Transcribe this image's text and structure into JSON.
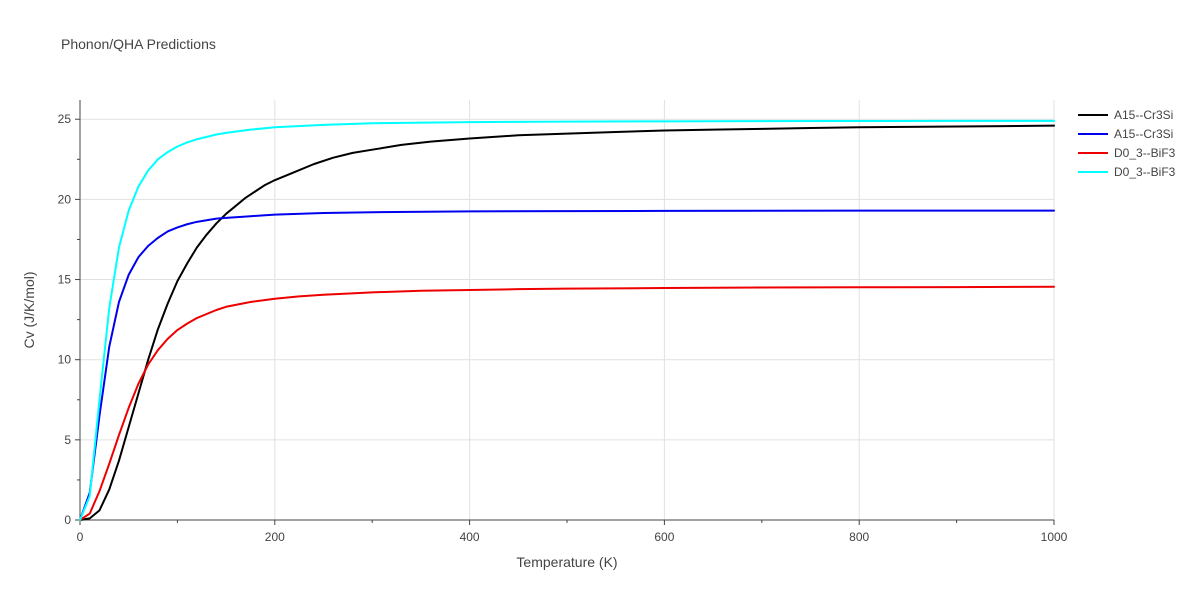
{
  "chart_data": {
    "type": "line",
    "title": "Phonon/QHA Predictions",
    "xlabel": "Temperature (K)",
    "ylabel": "Cv (J/K/mol)",
    "xlim": [
      0,
      1000
    ],
    "ylim": [
      0,
      26.2
    ],
    "xticks": [
      0,
      200,
      400,
      600,
      800,
      1000
    ],
    "xtick_labels": [
      "0",
      "200",
      "400",
      "600",
      "800",
      "1000"
    ],
    "yticks": [
      0,
      5,
      10,
      15,
      20,
      25
    ],
    "ytick_labels": [
      "0",
      "5",
      "10",
      "15",
      "20",
      "25"
    ],
    "grid": true,
    "legend_position": "top-right",
    "series": [
      {
        "name": "A15--Cr3Si",
        "color": "#000000",
        "x": [
          0,
          10,
          20,
          30,
          40,
          50,
          60,
          70,
          80,
          90,
          100,
          110,
          120,
          130,
          140,
          150,
          160,
          170,
          180,
          190,
          200,
          220,
          240,
          260,
          280,
          300,
          330,
          360,
          400,
          450,
          500,
          550,
          600,
          650,
          700,
          750,
          800,
          850,
          900,
          950,
          1000
        ],
        "y": [
          0,
          0.1,
          0.6,
          1.9,
          3.7,
          5.8,
          7.9,
          10.0,
          11.9,
          13.5,
          14.9,
          16.0,
          17.0,
          17.8,
          18.5,
          19.1,
          19.6,
          20.1,
          20.5,
          20.9,
          21.2,
          21.7,
          22.2,
          22.6,
          22.9,
          23.1,
          23.4,
          23.6,
          23.8,
          24.0,
          24.1,
          24.2,
          24.3,
          24.35,
          24.4,
          24.45,
          24.5,
          24.52,
          24.55,
          24.57,
          24.6
        ]
      },
      {
        "name": "A15--Cr3Si",
        "color": "#0000ee",
        "x": [
          0,
          10,
          20,
          30,
          40,
          50,
          60,
          70,
          80,
          90,
          100,
          110,
          120,
          130,
          140,
          150,
          175,
          200,
          250,
          300,
          400,
          500,
          600,
          700,
          800,
          900,
          1000
        ],
        "y": [
          0,
          1.7,
          6.5,
          10.8,
          13.6,
          15.3,
          16.4,
          17.1,
          17.6,
          18.0,
          18.25,
          18.45,
          18.6,
          18.7,
          18.8,
          18.85,
          18.95,
          19.05,
          19.15,
          19.2,
          19.25,
          19.27,
          19.28,
          19.29,
          19.3,
          19.3,
          19.3
        ]
      },
      {
        "name": "D0_3--BiF3",
        "color": "#ee0000",
        "x": [
          0,
          10,
          20,
          30,
          40,
          50,
          60,
          70,
          80,
          90,
          100,
          110,
          120,
          130,
          140,
          150,
          175,
          200,
          225,
          250,
          300,
          350,
          400,
          450,
          500,
          600,
          700,
          800,
          900,
          1000
        ],
        "y": [
          0,
          0.4,
          1.8,
          3.5,
          5.3,
          7.0,
          8.5,
          9.7,
          10.6,
          11.3,
          11.85,
          12.25,
          12.6,
          12.85,
          13.1,
          13.3,
          13.6,
          13.8,
          13.95,
          14.05,
          14.2,
          14.3,
          14.35,
          14.4,
          14.43,
          14.47,
          14.5,
          14.52,
          14.53,
          14.55
        ]
      },
      {
        "name": "D0_3--BiF3",
        "color": "#00ffff",
        "x": [
          0,
          10,
          20,
          30,
          40,
          50,
          60,
          70,
          80,
          90,
          100,
          110,
          120,
          130,
          140,
          150,
          175,
          200,
          250,
          300,
          400,
          500,
          600,
          700,
          800,
          900,
          1000
        ],
        "y": [
          0,
          1.5,
          7.5,
          13.2,
          17.0,
          19.3,
          20.8,
          21.8,
          22.5,
          22.95,
          23.3,
          23.55,
          23.75,
          23.9,
          24.05,
          24.15,
          24.35,
          24.5,
          24.65,
          24.75,
          24.82,
          24.85,
          24.87,
          24.88,
          24.89,
          24.9,
          24.9
        ]
      }
    ]
  }
}
